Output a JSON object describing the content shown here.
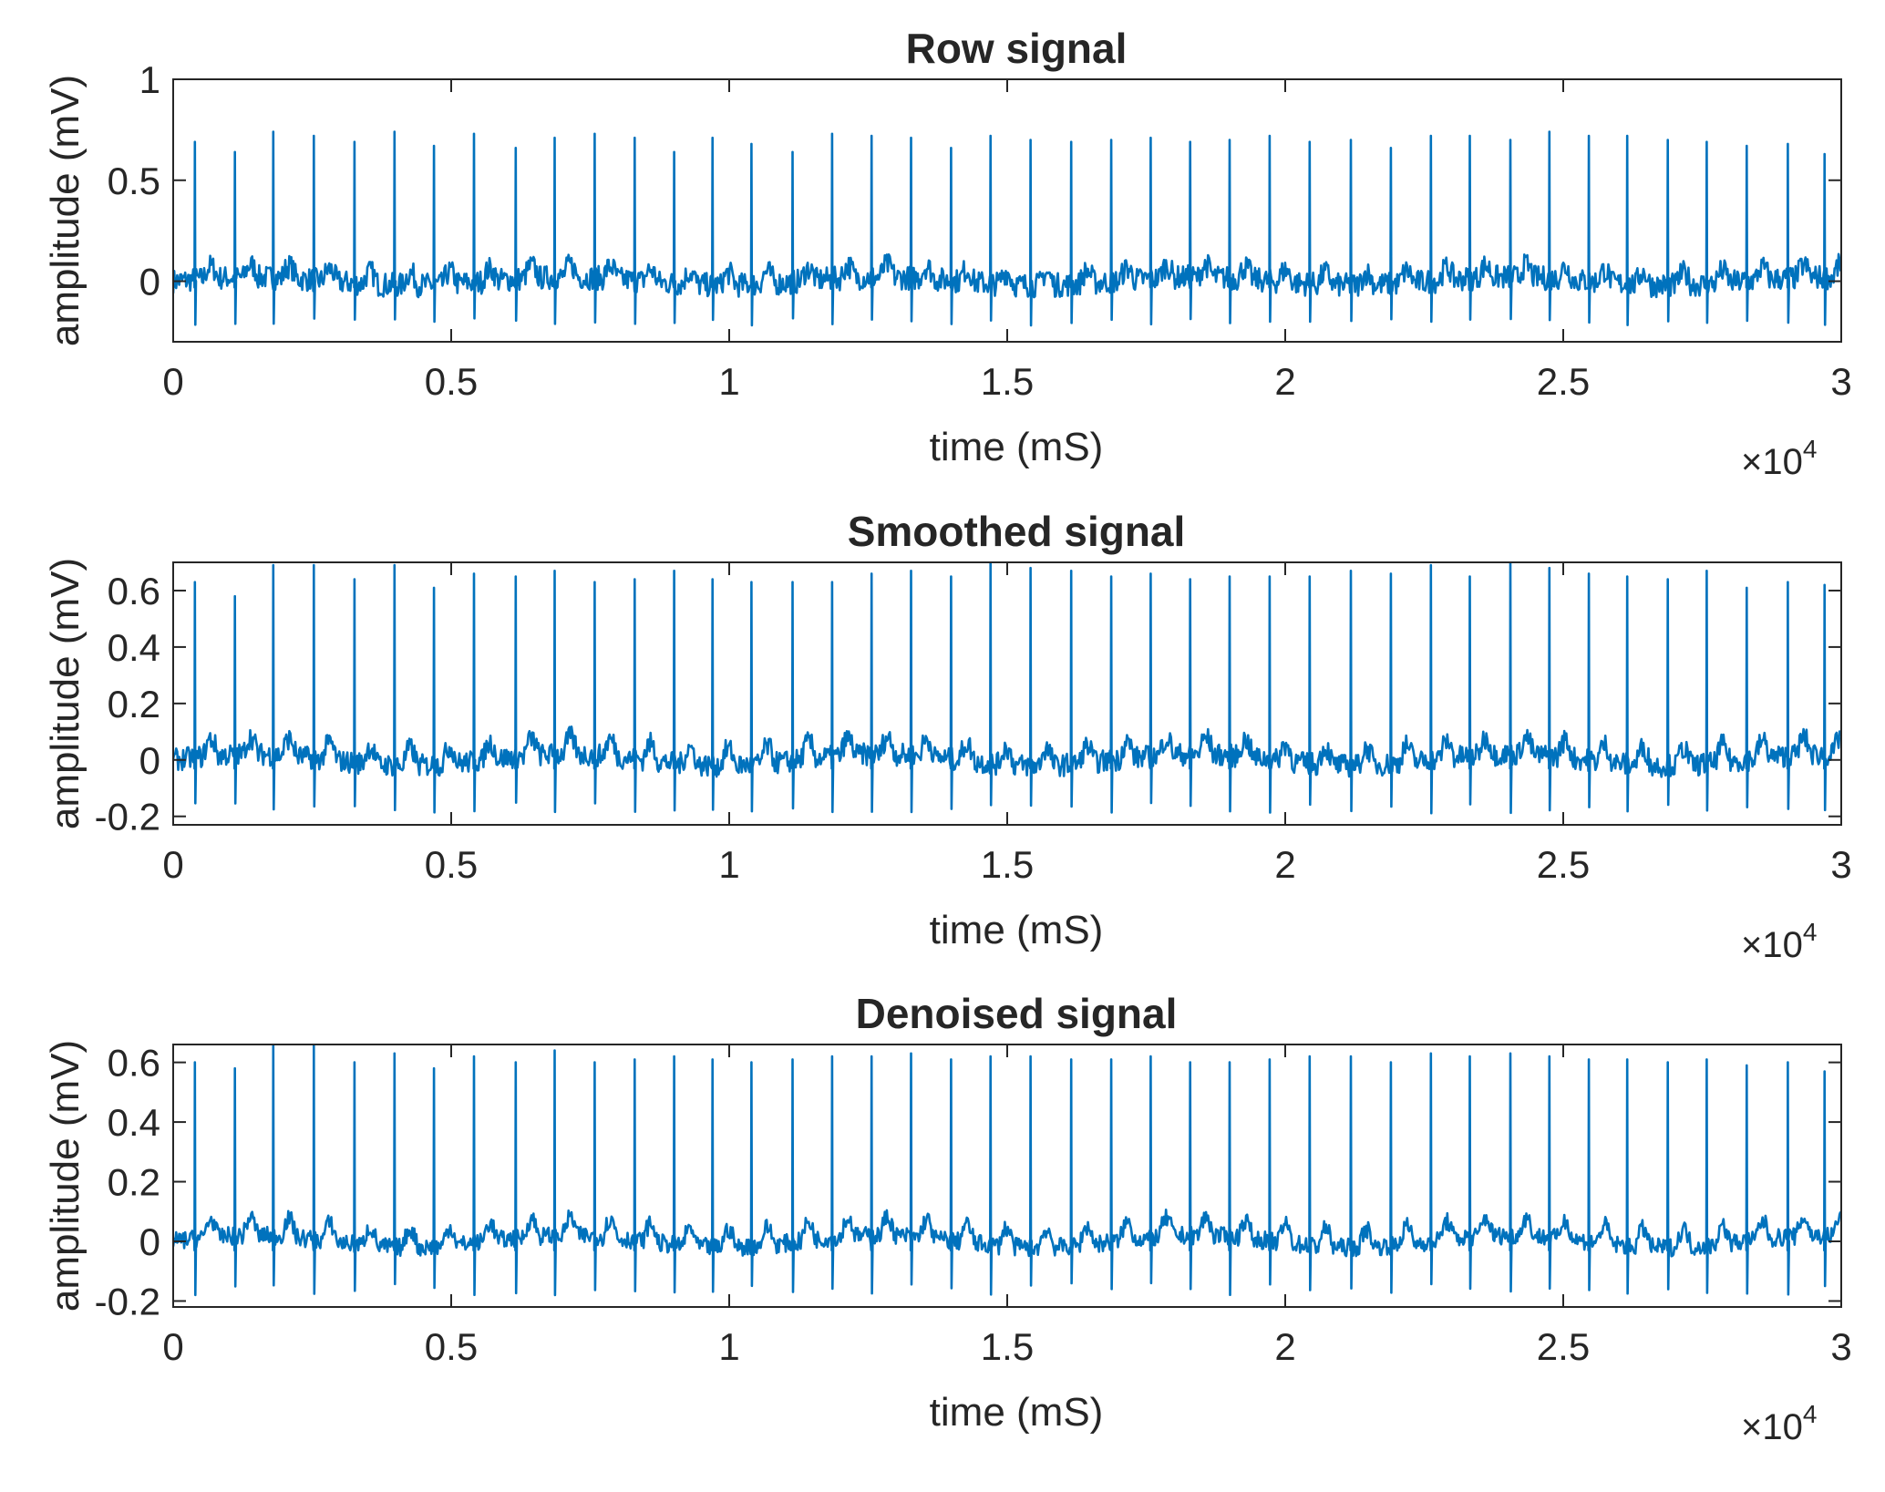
{
  "colors": {
    "line": "#0072BD",
    "axes": "#262626",
    "background": "#ffffff"
  },
  "chart_data": [
    {
      "type": "line",
      "title": "Row signal",
      "xlabel": "time (mS)",
      "ylabel": "amplitude (mV)",
      "x_multiplier": "×10",
      "x_multiplier_exp": "4",
      "xlim": [
        0,
        30000
      ],
      "ylim": [
        -0.3,
        1
      ],
      "xticks": [
        0,
        5000,
        10000,
        15000,
        20000,
        25000,
        30000
      ],
      "xtick_labels": [
        "0",
        "0.5",
        "1",
        "1.5",
        "2",
        "2.5",
        "3"
      ],
      "yticks": [
        0,
        0.5,
        1
      ],
      "ytick_labels": [
        "0",
        "0.5",
        "1"
      ],
      "series": [
        {
          "x": [
            390,
            1110,
            1800,
            2530,
            3260,
            3980,
            4690,
            5410,
            6160,
            6860,
            7580,
            8300,
            9010,
            9700,
            10400,
            11140,
            11850,
            12560,
            13270,
            13990,
            14700,
            15420,
            16150,
            16870,
            17580,
            18290,
            19000,
            19720,
            20440,
            21180,
            21900,
            22620,
            23320,
            24050,
            24750,
            25460,
            26150,
            26880,
            27580,
            28300,
            29040,
            29700
          ],
          "y": [
            0.69,
            0.64,
            0.74,
            0.72,
            0.69,
            0.74,
            0.67,
            0.73,
            0.66,
            0.71,
            0.73,
            0.71,
            0.64,
            0.71,
            0.68,
            0.64,
            0.73,
            0.72,
            0.71,
            0.66,
            0.72,
            0.7,
            0.69,
            0.7,
            0.71,
            0.69,
            0.7,
            0.72,
            0.69,
            0.7,
            0.66,
            0.72,
            0.72,
            0.7,
            0.74,
            0.72,
            0.72,
            0.7,
            0.69,
            0.67,
            0.68,
            0.63
          ],
          "baseline_mV": 0.0,
          "baseline_noise_mV": 0.06,
          "trough_mV": -0.22
        }
      ]
    },
    {
      "type": "line",
      "title": "Smoothed signal",
      "xlabel": "time (mS)",
      "ylabel": "amplitude (mV)",
      "x_multiplier": "×10",
      "x_multiplier_exp": "4",
      "xlim": [
        0,
        30000
      ],
      "ylim": [
        -0.23,
        0.7
      ],
      "xticks": [
        0,
        5000,
        10000,
        15000,
        20000,
        25000,
        30000
      ],
      "xtick_labels": [
        "0",
        "0.5",
        "1",
        "1.5",
        "2",
        "2.5",
        "3"
      ],
      "yticks": [
        -0.2,
        0,
        0.2,
        0.4,
        0.6
      ],
      "ytick_labels": [
        "-0.2",
        "0",
        "0.2",
        "0.4",
        "0.6"
      ],
      "series": [
        {
          "x": [
            390,
            1110,
            1800,
            2530,
            3260,
            3980,
            4690,
            5410,
            6160,
            6860,
            7580,
            8300,
            9010,
            9700,
            10400,
            11140,
            11850,
            12560,
            13270,
            13990,
            14700,
            15420,
            16150,
            16870,
            17580,
            18290,
            19000,
            19720,
            20440,
            21180,
            21900,
            22620,
            23320,
            24050,
            24750,
            25460,
            26150,
            26880,
            27580,
            28300,
            29040,
            29700
          ],
          "y": [
            0.63,
            0.58,
            0.69,
            0.69,
            0.64,
            0.69,
            0.61,
            0.66,
            0.65,
            0.67,
            0.63,
            0.64,
            0.67,
            0.64,
            0.63,
            0.63,
            0.63,
            0.66,
            0.67,
            0.65,
            0.7,
            0.68,
            0.67,
            0.65,
            0.66,
            0.64,
            0.65,
            0.65,
            0.65,
            0.67,
            0.66,
            0.69,
            0.65,
            0.7,
            0.68,
            0.66,
            0.65,
            0.64,
            0.67,
            0.61,
            0.63,
            0.62
          ],
          "baseline_mV": 0.0,
          "baseline_noise_mV": 0.04,
          "trough_mV": -0.19
        }
      ]
    },
    {
      "type": "line",
      "title": "Denoised signal",
      "xlabel": "time (mS)",
      "ylabel": "amplitude (mV)",
      "x_multiplier": "×10",
      "x_multiplier_exp": "4",
      "xlim": [
        0,
        30000
      ],
      "ylim": [
        -0.22,
        0.66
      ],
      "xticks": [
        0,
        5000,
        10000,
        15000,
        20000,
        25000,
        30000
      ],
      "xtick_labels": [
        "0",
        "0.5",
        "1",
        "1.5",
        "2",
        "2.5",
        "3"
      ],
      "yticks": [
        -0.2,
        0,
        0.2,
        0.4,
        0.6
      ],
      "ytick_labels": [
        "-0.2",
        "0",
        "0.2",
        "0.4",
        "0.6"
      ],
      "series": [
        {
          "x": [
            390,
            1110,
            1800,
            2530,
            3260,
            3980,
            4690,
            5410,
            6160,
            6860,
            7580,
            8300,
            9010,
            9700,
            10400,
            11140,
            11850,
            12560,
            13270,
            13990,
            14700,
            15420,
            16150,
            16870,
            17580,
            18290,
            19000,
            19720,
            20440,
            21180,
            21900,
            22620,
            23320,
            24050,
            24750,
            25460,
            26150,
            26880,
            27580,
            28300,
            29040,
            29700
          ],
          "y": [
            0.6,
            0.58,
            0.66,
            0.66,
            0.6,
            0.63,
            0.58,
            0.62,
            0.6,
            0.64,
            0.6,
            0.61,
            0.62,
            0.61,
            0.6,
            0.61,
            0.62,
            0.62,
            0.63,
            0.61,
            0.62,
            0.62,
            0.61,
            0.61,
            0.62,
            0.6,
            0.6,
            0.61,
            0.62,
            0.62,
            0.6,
            0.63,
            0.62,
            0.63,
            0.62,
            0.61,
            0.61,
            0.6,
            0.61,
            0.59,
            0.6,
            0.57
          ],
          "baseline_mV": 0.0,
          "baseline_noise_mV": 0.03,
          "trough_mV": -0.18
        }
      ]
    }
  ]
}
